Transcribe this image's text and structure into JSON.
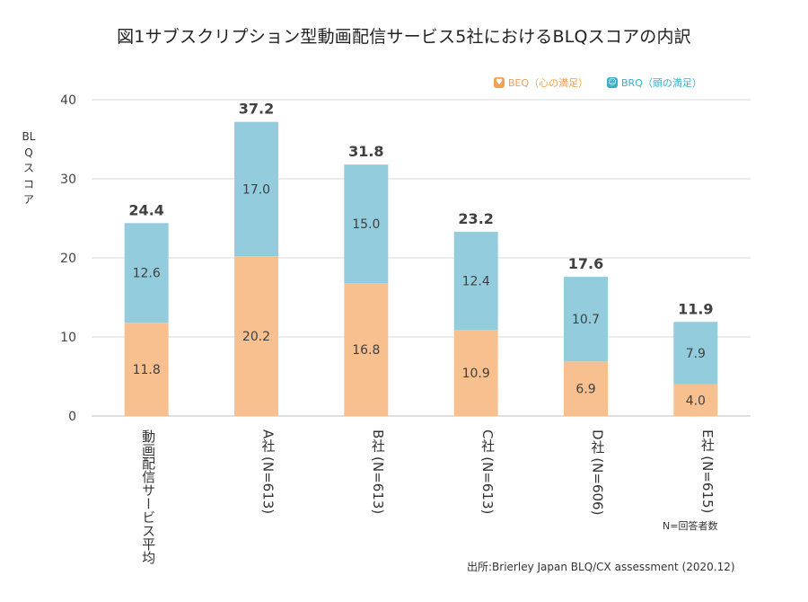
{
  "chart_data": {
    "type": "bar",
    "stacked": true,
    "title": "図1サブスクリプション型動画配信サービス5社におけるBLQスコアの内訳",
    "ylabel": "BLQスコア",
    "ylim": [
      0,
      40
    ],
    "yticks": [
      0,
      10,
      20,
      30,
      40
    ],
    "grid": true,
    "legend_position": "top-right",
    "categories": [
      "動画配信サービス平均",
      "A社 (N=613)",
      "B社 (N=613)",
      "C社 (N=613)",
      "D社 (N=606)",
      "E社 (N=615)"
    ],
    "series": [
      {
        "name": "BEQ（心の満足）",
        "color": "#f9c08f",
        "values": [
          11.8,
          20.2,
          16.8,
          10.9,
          6.9,
          4.0
        ],
        "value_labels": [
          "11.8",
          "20.2",
          "16.8",
          "10.9",
          "6.9",
          "4.0"
        ]
      },
      {
        "name": "BRQ（頭の満足）",
        "color": "#93cddd",
        "values": [
          12.6,
          17.0,
          15.0,
          12.4,
          10.7,
          7.9
        ],
        "value_labels": [
          "12.6",
          "17.0",
          "15.0",
          "12.4",
          "10.7",
          "7.9"
        ]
      }
    ],
    "totals": [
      24.4,
      37.2,
      31.8,
      23.2,
      17.6,
      11.9
    ],
    "total_labels": [
      "24.4",
      "37.2",
      "31.8",
      "23.2",
      "17.6",
      "11.9"
    ]
  },
  "legend_icons": {
    "beq": "heart-icon",
    "brq": "head-icon",
    "beq_color": "#f0a050",
    "brq_color": "#3ab0c8"
  },
  "note": "N=回答者数",
  "source": "出所:Brierley Japan BLQ/CX assessment (2020.12)"
}
